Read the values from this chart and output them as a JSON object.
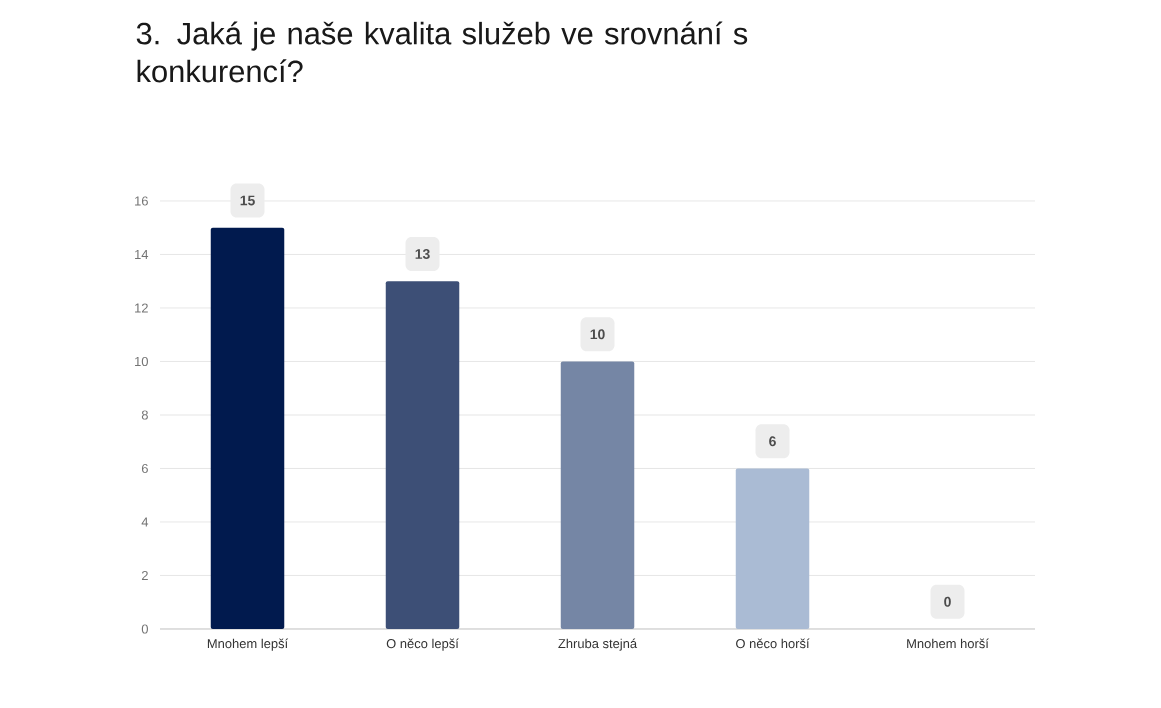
{
  "chart_data": {
    "type": "bar",
    "title": "3. Jaká je naše kvalita služeb ve srovnání s konkurencí?",
    "categories": [
      "Mnohem lepší",
      "O něco lepší",
      "Zhruba stejná",
      "O něco horší",
      "Mnohem horší"
    ],
    "values": [
      15,
      13,
      10,
      6,
      0
    ],
    "colors": [
      "#011a4e",
      "#3d4f76",
      "#7586a5",
      "#aabbd4",
      "#d6deea"
    ],
    "ylim": [
      0,
      16
    ],
    "yticks": [
      0,
      2,
      4,
      6,
      8,
      10,
      12,
      14,
      16
    ],
    "grid": "y",
    "data_labels": true
  }
}
